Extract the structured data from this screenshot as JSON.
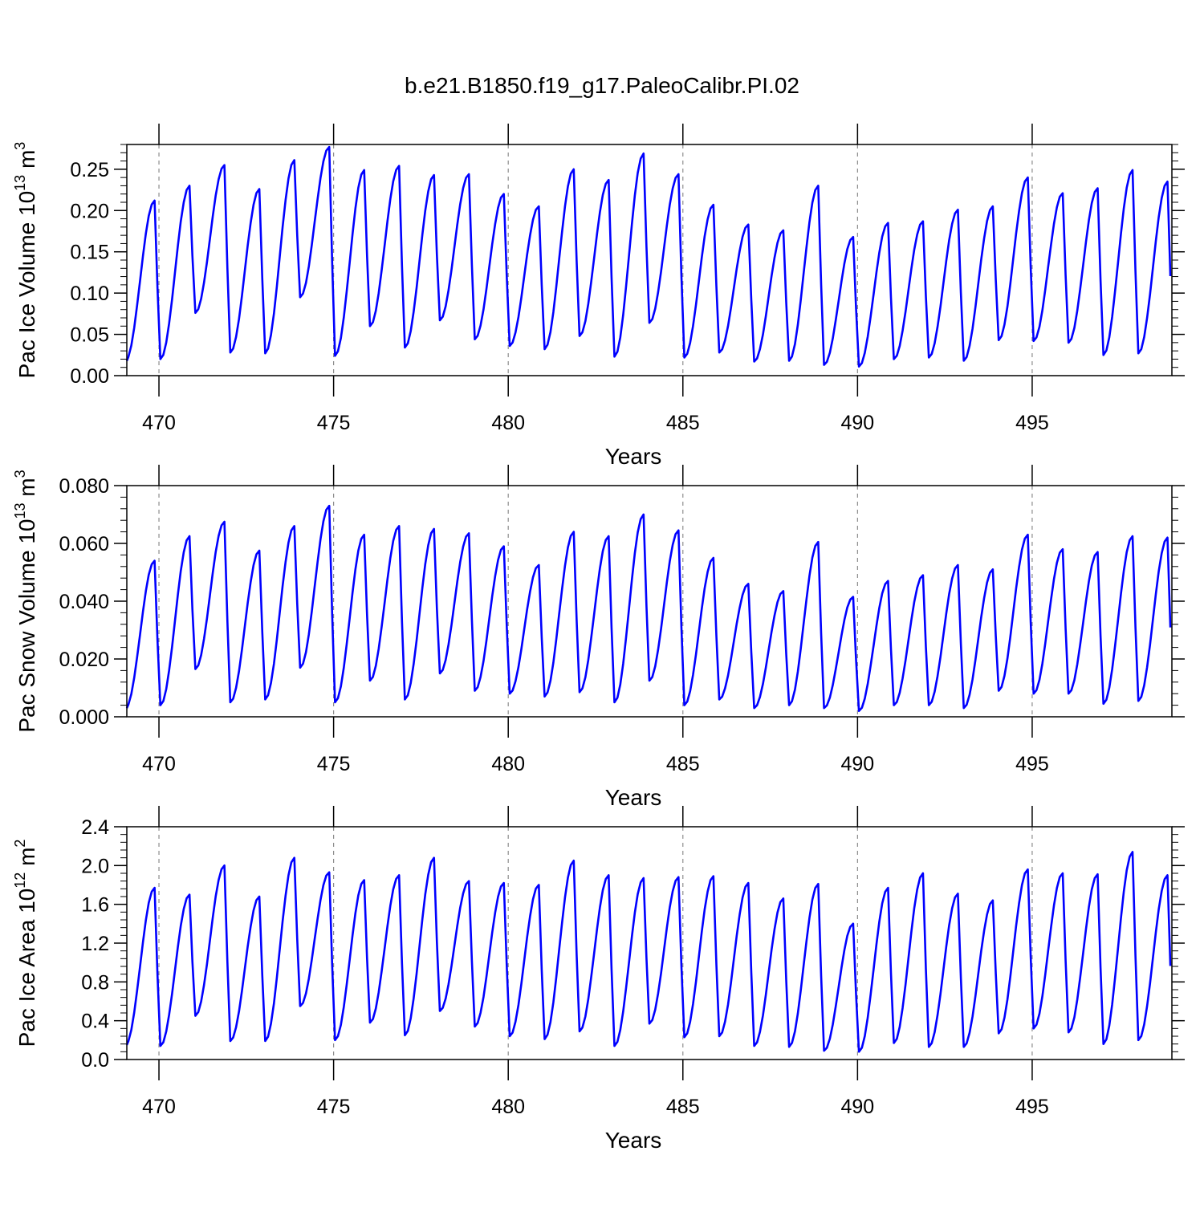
{
  "title": "b.e21.B1850.f19_g17.PaleoCalibr.PI.02",
  "colors": {
    "line": "#0000ff",
    "axis": "#000000",
    "grid": "#8c8c8c"
  },
  "chart_data": [
    {
      "type": "line",
      "ylabel_main": "Pac Ice Volume 10",
      "ylabel_exp": "13",
      "ylabel_unit": " m",
      "ylabel_unit_exp": "3",
      "xlabel": "Years",
      "xlim": [
        469.08,
        499.0
      ],
      "ylim": [
        0.0,
        0.28
      ],
      "xticks": [
        470,
        475,
        480,
        485,
        490,
        495
      ],
      "xtick_labels": [
        "470",
        "475",
        "480",
        "485",
        "490",
        "495"
      ],
      "yticks": [
        0.0,
        0.05,
        0.1,
        0.15,
        0.2,
        0.25
      ],
      "ytick_labels": [
        "0.00",
        "0.05",
        "0.10",
        "0.15",
        "0.20",
        "0.25"
      ],
      "y_minor_step": 0.01,
      "grid": "dashed vertical at major x ticks",
      "x_start": 469.0417,
      "x_step": 0.08333,
      "annual_max": [
        0.212,
        0.23,
        0.255,
        0.226,
        0.261,
        0.277,
        0.249,
        0.254,
        0.243,
        0.244,
        0.22,
        0.205,
        0.25,
        0.237,
        0.269,
        0.244,
        0.207,
        0.183,
        0.176,
        0.23,
        0.168,
        0.185,
        0.187,
        0.201,
        0.205,
        0.24,
        0.221,
        0.227,
        0.249,
        0.235
      ],
      "annual_min": [
        0.018,
        0.02,
        0.076,
        0.028,
        0.027,
        0.095,
        0.024,
        0.06,
        0.034,
        0.067,
        0.044,
        0.036,
        0.032,
        0.048,
        0.023,
        0.064,
        0.022,
        0.028,
        0.017,
        0.018,
        0.013,
        0.011,
        0.02,
        0.022,
        0.018,
        0.043,
        0.042,
        0.04,
        0.025,
        0.027
      ]
    },
    {
      "type": "line",
      "ylabel_main": "Pac Snow Volume 10",
      "ylabel_exp": "13",
      "ylabel_unit": " m",
      "ylabel_unit_exp": "3",
      "xlabel": "Years",
      "xlim": [
        469.08,
        499.0
      ],
      "ylim": [
        0.0,
        0.08
      ],
      "xticks": [
        470,
        475,
        480,
        485,
        490,
        495
      ],
      "xtick_labels": [
        "470",
        "475",
        "480",
        "485",
        "490",
        "495"
      ],
      "yticks": [
        0.0,
        0.02,
        0.04,
        0.06,
        0.08
      ],
      "ytick_labels": [
        "0.000",
        "0.020",
        "0.040",
        "0.060",
        "0.080"
      ],
      "y_minor_step": 0.004,
      "grid": "dashed vertical at major x ticks",
      "x_start": 469.0417,
      "x_step": 0.08333,
      "annual_max": [
        0.054,
        0.0625,
        0.0675,
        0.0575,
        0.066,
        0.073,
        0.063,
        0.066,
        0.065,
        0.0635,
        0.059,
        0.0525,
        0.064,
        0.0625,
        0.07,
        0.0645,
        0.055,
        0.046,
        0.0435,
        0.0605,
        0.0415,
        0.047,
        0.049,
        0.0525,
        0.051,
        0.063,
        0.058,
        0.057,
        0.0625,
        0.062
      ],
      "annual_min": [
        0.003,
        0.004,
        0.0165,
        0.005,
        0.006,
        0.017,
        0.005,
        0.0125,
        0.006,
        0.015,
        0.009,
        0.008,
        0.007,
        0.0085,
        0.005,
        0.0125,
        0.004,
        0.006,
        0.003,
        0.004,
        0.003,
        0.002,
        0.004,
        0.004,
        0.003,
        0.009,
        0.008,
        0.008,
        0.0045,
        0.0055
      ]
    },
    {
      "type": "line",
      "ylabel_main": "Pac Ice Area 10",
      "ylabel_exp": "12",
      "ylabel_unit": " m",
      "ylabel_unit_exp": "2",
      "xlabel": "Years",
      "xlim": [
        469.08,
        499.0
      ],
      "ylim": [
        0.0,
        2.4
      ],
      "xticks": [
        470,
        475,
        480,
        485,
        490,
        495
      ],
      "xtick_labels": [
        "470",
        "475",
        "480",
        "485",
        "490",
        "495"
      ],
      "yticks": [
        0.0,
        0.4,
        0.8,
        1.2,
        1.6,
        2.0,
        2.4
      ],
      "ytick_labels": [
        "0.0",
        "0.4",
        "0.8",
        "1.2",
        "1.6",
        "2.0",
        "2.4"
      ],
      "y_minor_step": 0.08,
      "grid": "dashed vertical at major x ticks",
      "x_start": 469.0417,
      "x_step": 0.08333,
      "annual_max": [
        1.77,
        1.7,
        2.0,
        1.68,
        2.08,
        1.93,
        1.85,
        1.9,
        2.08,
        1.84,
        1.82,
        1.8,
        2.05,
        1.9,
        1.87,
        1.88,
        1.89,
        1.82,
        1.66,
        1.81,
        1.4,
        1.77,
        1.92,
        1.71,
        1.64,
        1.96,
        1.92,
        1.91,
        2.14,
        1.9
      ],
      "annual_min": [
        0.15,
        0.14,
        0.45,
        0.19,
        0.19,
        0.55,
        0.2,
        0.38,
        0.25,
        0.5,
        0.34,
        0.24,
        0.21,
        0.29,
        0.14,
        0.37,
        0.23,
        0.24,
        0.14,
        0.13,
        0.09,
        0.08,
        0.17,
        0.13,
        0.13,
        0.27,
        0.32,
        0.28,
        0.16,
        0.2
      ]
    }
  ]
}
